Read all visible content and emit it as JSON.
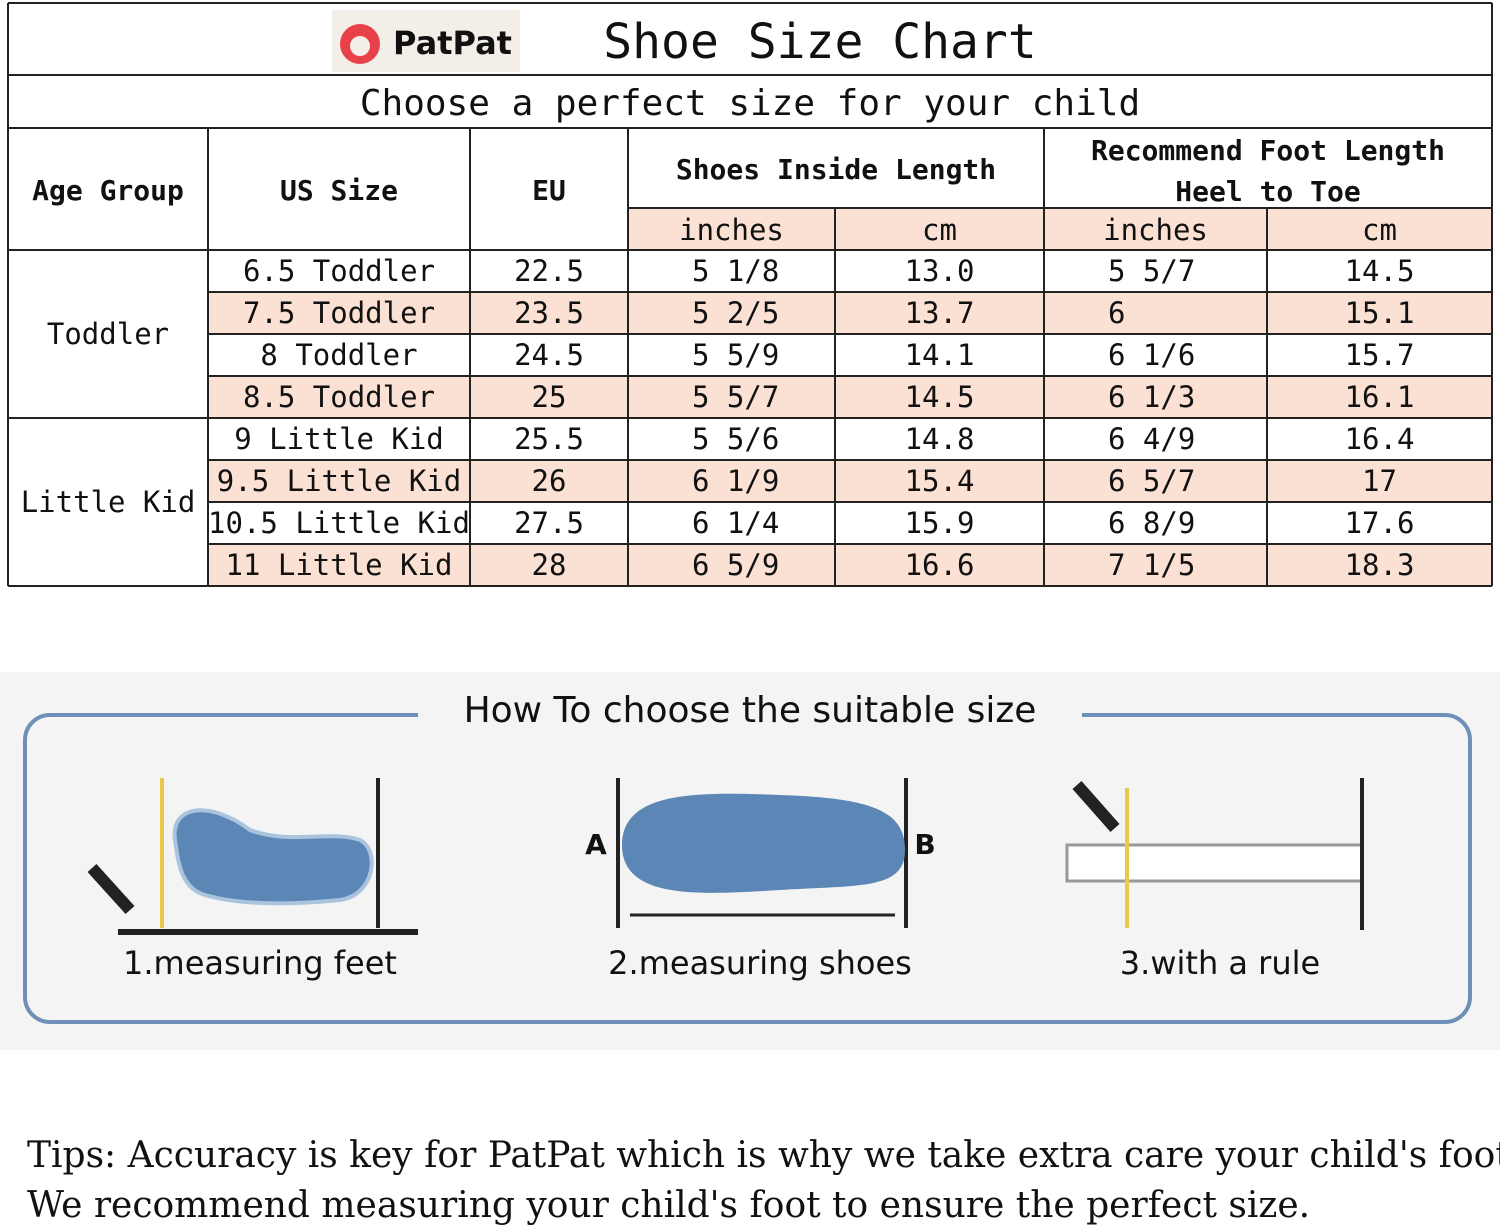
{
  "header": {
    "logo": "PatPat",
    "title": "Shoe Size Chart",
    "subtitle": "Choose a perfect size for your child"
  },
  "table": {
    "columns": [
      "Age Group",
      "US Size",
      "EU",
      "Shoes Inside Length",
      "Recommend Foot Length",
      "Heel to Toe"
    ],
    "units": [
      "inches",
      "cm",
      "inches",
      "cm"
    ],
    "groups": [
      {
        "name": "Toddler",
        "rows": [
          [
            "6.5 Toddler",
            "22.5",
            "5 1/8",
            "13.0",
            "5 5/7",
            "14.5"
          ],
          [
            "7.5 Toddler",
            "23.5",
            "5 2/5",
            "13.7",
            "6",
            "15.1"
          ],
          [
            "8 Toddler",
            "24.5",
            "5 5/9",
            "14.1",
            "6 1/6",
            "15.7"
          ],
          [
            "8.5 Toddler",
            "25",
            "5 5/7",
            "14.5",
            "6 1/3",
            "16.1"
          ]
        ]
      },
      {
        "name": "Little Kid",
        "rows": [
          [
            "9 Little Kid",
            "25.5",
            "5 5/6",
            "14.8",
            "6 4/9",
            "16.4"
          ],
          [
            "9.5 Little Kid",
            "26",
            "6 1/9",
            "15.4",
            "6 5/7",
            "17"
          ],
          [
            "10.5 Little Kid",
            "27.5",
            "6 1/4",
            "15.9",
            "6 8/9",
            "17.6"
          ],
          [
            "11 Little Kid",
            "28",
            "6 5/9",
            "16.6",
            "7 1/5",
            "18.3"
          ]
        ]
      }
    ]
  },
  "guide": {
    "title": "How To choose the suitable size",
    "steps": [
      "1.measuring feet",
      "2.measuring shoes",
      "3.with a rule"
    ],
    "marks": [
      "A",
      "B"
    ]
  },
  "tips": [
    "Tips: Accuracy is key for PatPat which is why we take extra care your child's foot size,",
    "We recommend measuring your child's foot to ensure the perfect size."
  ]
}
